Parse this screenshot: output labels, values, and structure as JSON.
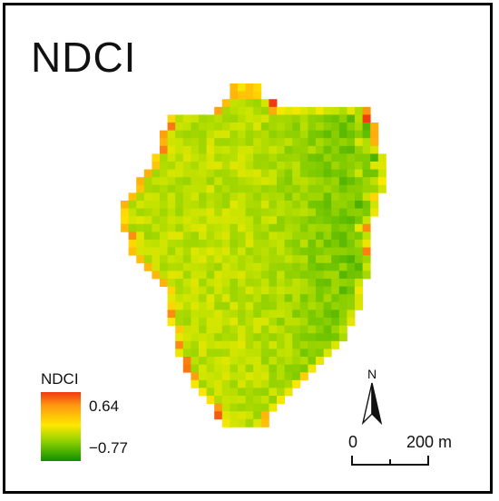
{
  "map": {
    "title": "NDCI",
    "legend": {
      "title": "NDCI",
      "max_label": "0.64",
      "min_label": "−0.77",
      "max_value": 0.64,
      "min_value": -0.77,
      "colors": [
        "#0e9000",
        "#8cd000",
        "#ffe800",
        "#ff9a10",
        "#f03a10"
      ]
    },
    "north_arrow": {
      "label": "N"
    },
    "scale_bar": {
      "start_label": "0",
      "end_label": "200 m",
      "length_m": 200
    }
  }
}
